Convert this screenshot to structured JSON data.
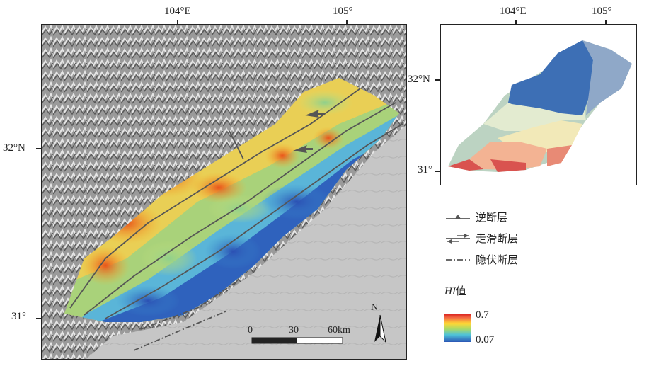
{
  "main_map": {
    "top_ticks": [
      "104°E",
      "105°"
    ],
    "left_ticks": [
      "32°N",
      "31°"
    ],
    "scale_bar": {
      "labels": [
        "0",
        "30",
        "60km"
      ]
    },
    "north_arrow_label": "N"
  },
  "inset_map": {
    "top_ticks": [
      "104°E",
      "105°"
    ],
    "left_ticks": [
      "32°N",
      "31°"
    ]
  },
  "legend": {
    "faults": [
      {
        "symbol": "thrust-fault-symbol",
        "label": "逆断层"
      },
      {
        "symbol": "strike-slip-fault-symbol",
        "label": "走滑断层"
      },
      {
        "symbol": "concealed-fault-symbol",
        "label": "隐伏断层"
      }
    ],
    "hi_title_italic": "HI",
    "hi_title_suffix": "值",
    "hi_max": "0.7",
    "hi_min": "0.07"
  },
  "colors": {
    "hi_high": "#d7191c",
    "hi_mid": "#fdd835",
    "hi_low": "#2b56b5",
    "fault_line": "#555555"
  }
}
